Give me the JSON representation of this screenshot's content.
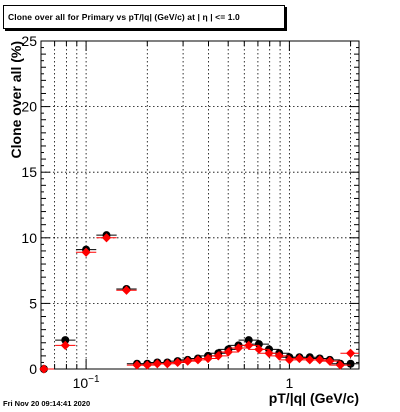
{
  "chart_data": {
    "type": "scatter",
    "title": "Clone  over all for Primary vs pT/|q| (GeV/c) at |  η | <= 1.0",
    "xlabel": "pT/|q| (GeV/c)",
    "ylabel": "Clone  over all (%)",
    "x_scale": "log",
    "xlim": [
      0.06,
      2.2
    ],
    "ylim": [
      0,
      25
    ],
    "x_ticks": [
      {
        "value": 0.1,
        "label": "10^-1"
      },
      {
        "value": 1,
        "label": "1"
      }
    ],
    "y_ticks": [
      0,
      5,
      10,
      15,
      20,
      25
    ],
    "grid": true,
    "legend": "none",
    "series": [
      {
        "color": "#000000",
        "marker": "circle",
        "points": [
          {
            "x": 0.062,
            "y": 0.0
          },
          {
            "x": 0.079,
            "y": 2.2
          },
          {
            "x": 0.1,
            "y": 9.1
          },
          {
            "x": 0.126,
            "y": 10.2
          },
          {
            "x": 0.158,
            "y": 6.1
          },
          {
            "x": 0.178,
            "y": 0.4
          },
          {
            "x": 0.2,
            "y": 0.4
          },
          {
            "x": 0.224,
            "y": 0.5
          },
          {
            "x": 0.251,
            "y": 0.5
          },
          {
            "x": 0.282,
            "y": 0.6
          },
          {
            "x": 0.316,
            "y": 0.7
          },
          {
            "x": 0.355,
            "y": 0.8
          },
          {
            "x": 0.398,
            "y": 1.0
          },
          {
            "x": 0.447,
            "y": 1.2
          },
          {
            "x": 0.501,
            "y": 1.5
          },
          {
            "x": 0.562,
            "y": 1.8
          },
          {
            "x": 0.631,
            "y": 2.2
          },
          {
            "x": 0.708,
            "y": 1.9
          },
          {
            "x": 0.794,
            "y": 1.5
          },
          {
            "x": 0.891,
            "y": 1.2
          },
          {
            "x": 1.0,
            "y": 0.9
          },
          {
            "x": 1.12,
            "y": 0.9
          },
          {
            "x": 1.26,
            "y": 0.9
          },
          {
            "x": 1.41,
            "y": 0.8
          },
          {
            "x": 1.58,
            "y": 0.7
          },
          {
            "x": 1.78,
            "y": 0.4
          },
          {
            "x": 2.0,
            "y": 0.4
          }
        ]
      },
      {
        "color": "#ff0000",
        "marker": "diamond",
        "points": [
          {
            "x": 0.062,
            "y": 0.0
          },
          {
            "x": 0.079,
            "y": 1.8
          },
          {
            "x": 0.1,
            "y": 8.9
          },
          {
            "x": 0.126,
            "y": 10.0
          },
          {
            "x": 0.158,
            "y": 6.0
          },
          {
            "x": 0.178,
            "y": 0.3
          },
          {
            "x": 0.2,
            "y": 0.3
          },
          {
            "x": 0.224,
            "y": 0.4
          },
          {
            "x": 0.251,
            "y": 0.4
          },
          {
            "x": 0.282,
            "y": 0.5
          },
          {
            "x": 0.316,
            "y": 0.6
          },
          {
            "x": 0.355,
            "y": 0.7
          },
          {
            "x": 0.398,
            "y": 0.8
          },
          {
            "x": 0.447,
            "y": 1.0
          },
          {
            "x": 0.501,
            "y": 1.3
          },
          {
            "x": 0.562,
            "y": 1.6
          },
          {
            "x": 0.631,
            "y": 1.8
          },
          {
            "x": 0.708,
            "y": 1.5
          },
          {
            "x": 0.794,
            "y": 1.2
          },
          {
            "x": 0.891,
            "y": 1.0
          },
          {
            "x": 1.0,
            "y": 0.7
          },
          {
            "x": 1.12,
            "y": 0.8
          },
          {
            "x": 1.26,
            "y": 0.7
          },
          {
            "x": 1.41,
            "y": 0.7
          },
          {
            "x": 1.58,
            "y": 0.6
          },
          {
            "x": 1.78,
            "y": 0.3
          },
          {
            "x": 2.0,
            "y": 1.2
          }
        ]
      }
    ]
  },
  "footer": {
    "timestamp": "Fri Nov 20 09:14:41 2020"
  }
}
